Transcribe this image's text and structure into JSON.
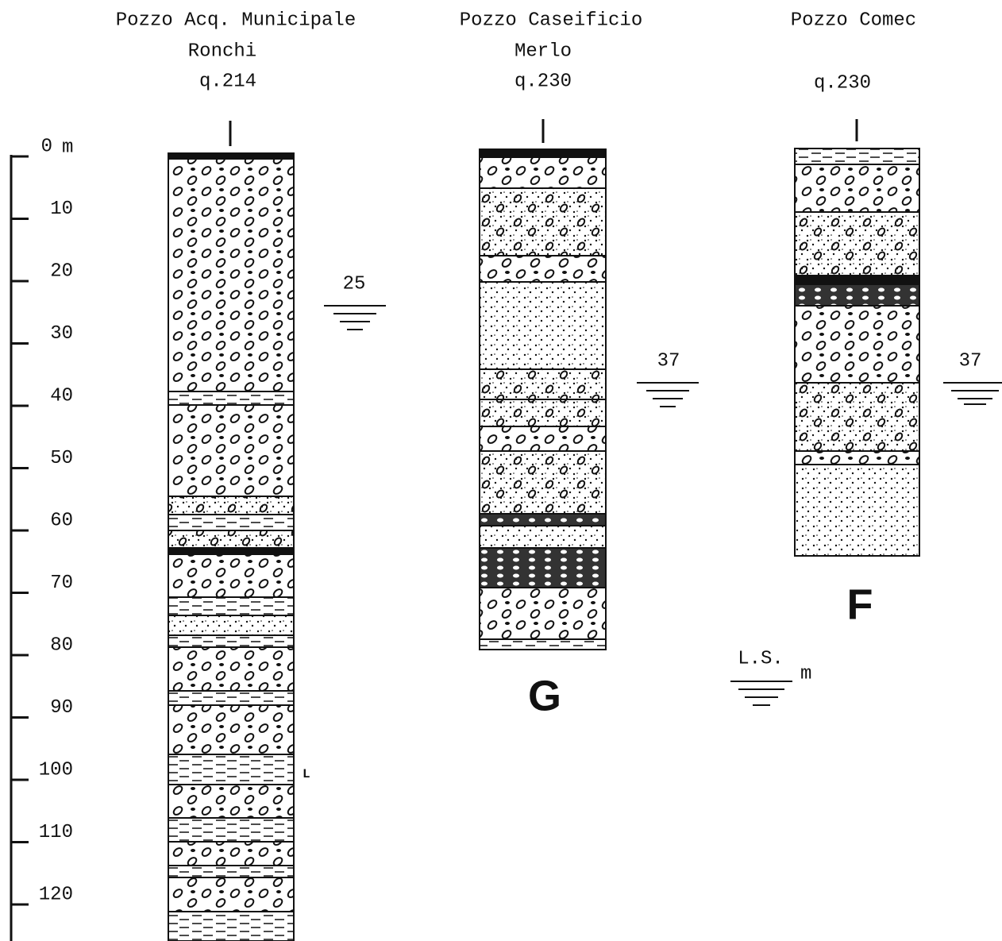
{
  "scale": {
    "unit": "m",
    "ticks": [
      "0",
      "10",
      "20",
      "30",
      "40",
      "50",
      "60",
      "70",
      "80",
      "90",
      "100",
      "110",
      "120"
    ]
  },
  "wells": [
    {
      "title": [
        "Pozzo Acq. Municipale",
        "Ronchi"
      ],
      "elevation": "q.214",
      "water_level": "25",
      "note": "L"
    },
    {
      "title": [
        "Pozzo Caseificio",
        "Merlo"
      ],
      "elevation": "q.230",
      "water_level": "37",
      "letter": "G"
    },
    {
      "title": [
        "Pozzo Comec"
      ],
      "elevation": "q.230",
      "water_level": "37",
      "letter": "F"
    }
  ],
  "legend": {
    "label": "L.S.",
    "unit": "m"
  }
}
